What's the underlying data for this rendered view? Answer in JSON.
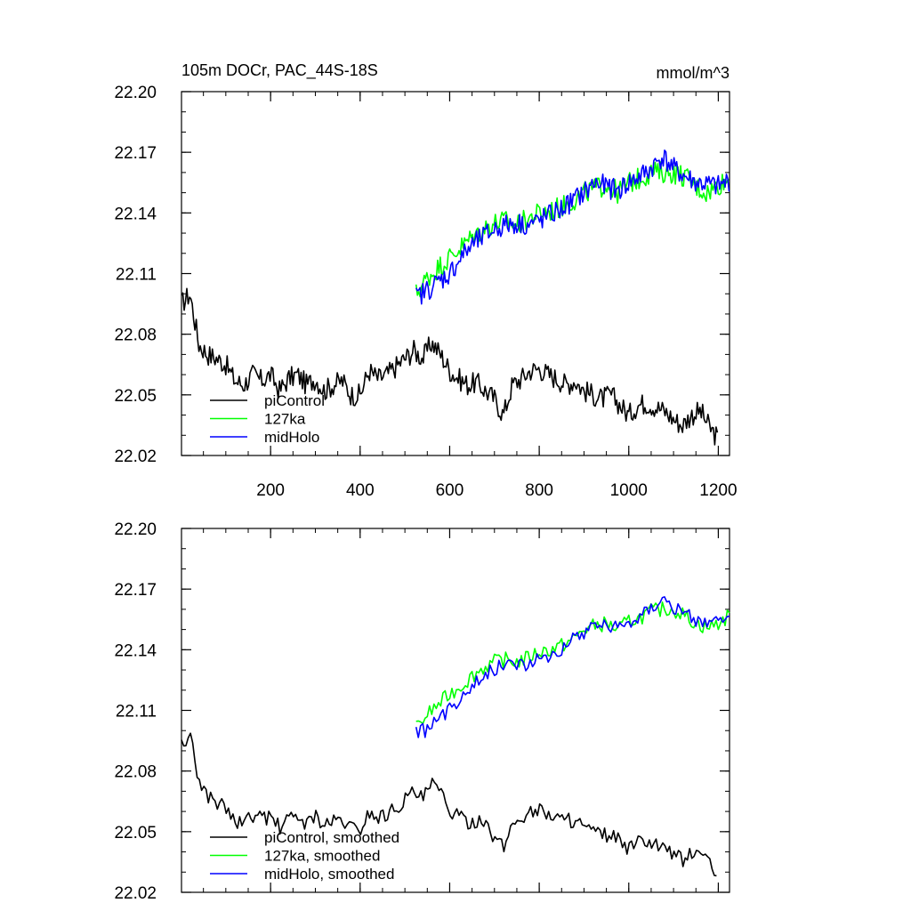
{
  "chart_data": [
    {
      "type": "line",
      "title": "105m DOCr, PAC_44S-18S",
      "units": "mmol/m^3",
      "xlabel": "",
      "ylabel": "",
      "xlim": [
        1,
        1225
      ],
      "ylim": [
        22.02,
        22.2
      ],
      "xticks": [
        200,
        400,
        600,
        800,
        1000,
        1200
      ],
      "xtick_labels": [
        "200",
        "400",
        "600",
        "800",
        "1000",
        "1200"
      ],
      "yticks": [
        22.02,
        22.05,
        22.08,
        22.11,
        22.14,
        22.17,
        22.2
      ],
      "ytick_labels": [
        "22.02",
        "22.05",
        "22.08",
        "22.11",
        "22.14",
        "22.17",
        "22.20"
      ],
      "grid": false,
      "legend_position": "bottom-left",
      "series": [
        {
          "name": "piControl",
          "color": "#000000",
          "x": [
            1,
            20,
            40,
            60,
            80,
            100,
            120,
            140,
            160,
            180,
            200,
            220,
            240,
            260,
            280,
            300,
            320,
            340,
            360,
            380,
            400,
            420,
            440,
            460,
            480,
            500,
            520,
            540,
            560,
            580,
            600,
            620,
            640,
            660,
            680,
            700,
            720,
            740,
            760,
            780,
            800,
            820,
            840,
            860,
            880,
            900,
            920,
            940,
            960,
            980,
            1000,
            1020,
            1040,
            1060,
            1080,
            1100,
            1120,
            1140,
            1160,
            1180,
            1200
          ],
          "values": [
            22.095,
            22.1,
            22.075,
            22.07,
            22.068,
            22.065,
            22.057,
            22.055,
            22.06,
            22.057,
            22.06,
            22.052,
            22.058,
            22.06,
            22.055,
            22.058,
            22.052,
            22.055,
            22.057,
            22.05,
            22.05,
            22.062,
            22.058,
            22.06,
            22.064,
            22.068,
            22.072,
            22.068,
            22.076,
            22.07,
            22.062,
            22.058,
            22.055,
            22.056,
            22.052,
            22.048,
            22.04,
            22.055,
            22.058,
            22.062,
            22.063,
            22.06,
            22.058,
            22.055,
            22.057,
            22.052,
            22.05,
            22.048,
            22.05,
            22.045,
            22.04,
            22.045,
            22.046,
            22.044,
            22.042,
            22.038,
            22.035,
            22.04,
            22.042,
            22.034,
            22.028
          ]
        },
        {
          "name": "127ka",
          "color": "#00ff00",
          "x": [
            525,
            550,
            575,
            600,
            625,
            650,
            675,
            700,
            725,
            750,
            775,
            800,
            825,
            850,
            875,
            900,
            925,
            950,
            975,
            1000,
            1025,
            1050,
            1075,
            1100,
            1125,
            1150,
            1175,
            1200,
            1225
          ],
          "values": [
            22.1,
            22.108,
            22.113,
            22.118,
            22.123,
            22.128,
            22.132,
            22.135,
            22.136,
            22.134,
            22.137,
            22.14,
            22.141,
            22.143,
            22.146,
            22.15,
            22.152,
            22.154,
            22.15,
            22.155,
            22.157,
            22.16,
            22.16,
            22.16,
            22.158,
            22.153,
            22.15,
            22.154,
            22.157
          ]
        },
        {
          "name": "midHolo",
          "color": "#0000ff",
          "x": [
            525,
            550,
            575,
            600,
            625,
            650,
            675,
            700,
            725,
            750,
            775,
            800,
            825,
            850,
            875,
            900,
            925,
            950,
            975,
            1000,
            1025,
            1050,
            1075,
            1100,
            1125,
            1150,
            1175,
            1200,
            1225
          ],
          "values": [
            22.098,
            22.102,
            22.106,
            22.11,
            22.118,
            22.124,
            22.128,
            22.132,
            22.134,
            22.135,
            22.134,
            22.136,
            22.139,
            22.142,
            22.146,
            22.15,
            22.155,
            22.153,
            22.151,
            22.155,
            22.158,
            22.162,
            22.168,
            22.162,
            22.158,
            22.155,
            22.154,
            22.153,
            22.156
          ]
        }
      ]
    },
    {
      "type": "line",
      "title": "",
      "xlabel": "",
      "ylabel": "",
      "xlim": [
        1,
        1225
      ],
      "ylim": [
        22.02,
        22.2
      ],
      "xticks": [
        200,
        400,
        600,
        800,
        1000,
        1200
      ],
      "xtick_labels": [],
      "yticks": [
        22.02,
        22.05,
        22.08,
        22.11,
        22.14,
        22.17,
        22.2
      ],
      "ytick_labels": [
        "22.02",
        "22.05",
        "22.08",
        "22.11",
        "22.14",
        "22.17",
        "22.20"
      ],
      "grid": false,
      "legend_position": "bottom-left",
      "series": [
        {
          "name": "piControl, smoothed",
          "color": "#000000",
          "x": [
            1,
            20,
            40,
            60,
            80,
            100,
            120,
            140,
            160,
            180,
            200,
            220,
            240,
            260,
            280,
            300,
            320,
            340,
            360,
            380,
            400,
            420,
            440,
            460,
            480,
            500,
            520,
            540,
            560,
            580,
            600,
            620,
            640,
            660,
            680,
            700,
            720,
            740,
            760,
            780,
            800,
            820,
            840,
            860,
            880,
            900,
            920,
            940,
            960,
            980,
            1000,
            1020,
            1040,
            1060,
            1080,
            1100,
            1120,
            1140,
            1160,
            1180,
            1200
          ],
          "values": [
            22.092,
            22.097,
            22.075,
            22.068,
            22.065,
            22.062,
            22.055,
            22.054,
            22.058,
            22.056,
            22.058,
            22.052,
            22.056,
            22.058,
            22.054,
            22.057,
            22.053,
            22.055,
            22.056,
            22.052,
            22.051,
            22.06,
            22.057,
            22.059,
            22.062,
            22.066,
            22.07,
            22.066,
            22.074,
            22.069,
            22.061,
            22.057,
            22.055,
            22.055,
            22.052,
            22.047,
            22.042,
            22.054,
            22.057,
            22.06,
            22.061,
            22.059,
            22.057,
            22.055,
            22.056,
            22.052,
            22.05,
            22.048,
            22.049,
            22.045,
            22.041,
            22.044,
            22.045,
            22.043,
            22.041,
            22.038,
            22.036,
            22.039,
            22.041,
            22.034,
            22.028
          ]
        },
        {
          "name": "127ka, smoothed",
          "color": "#00ff00",
          "x": [
            525,
            550,
            575,
            600,
            625,
            650,
            675,
            700,
            725,
            750,
            775,
            800,
            825,
            850,
            875,
            900,
            925,
            950,
            975,
            1000,
            1025,
            1050,
            1075,
            1100,
            1125,
            1150,
            1175,
            1200,
            1225
          ],
          "values": [
            22.101,
            22.108,
            22.113,
            22.118,
            22.122,
            22.127,
            22.131,
            22.134,
            22.135,
            22.134,
            22.136,
            22.139,
            22.14,
            22.142,
            22.145,
            22.15,
            22.152,
            22.153,
            22.15,
            22.154,
            22.156,
            22.159,
            22.16,
            22.16,
            22.157,
            22.153,
            22.151,
            22.153,
            22.157
          ]
        },
        {
          "name": "midHolo, smoothed",
          "color": "#0000ff",
          "x": [
            525,
            550,
            575,
            600,
            625,
            650,
            675,
            700,
            725,
            750,
            775,
            800,
            825,
            850,
            875,
            900,
            925,
            950,
            975,
            1000,
            1025,
            1050,
            1075,
            1100,
            1125,
            1150,
            1175,
            1200,
            1225
          ],
          "values": [
            22.098,
            22.101,
            22.105,
            22.11,
            22.117,
            22.123,
            22.127,
            22.131,
            22.133,
            22.134,
            22.133,
            22.135,
            22.138,
            22.141,
            22.145,
            22.149,
            22.154,
            22.152,
            22.151,
            22.154,
            22.157,
            22.161,
            22.167,
            22.161,
            22.157,
            22.155,
            22.154,
            22.153,
            22.155
          ]
        }
      ]
    }
  ]
}
